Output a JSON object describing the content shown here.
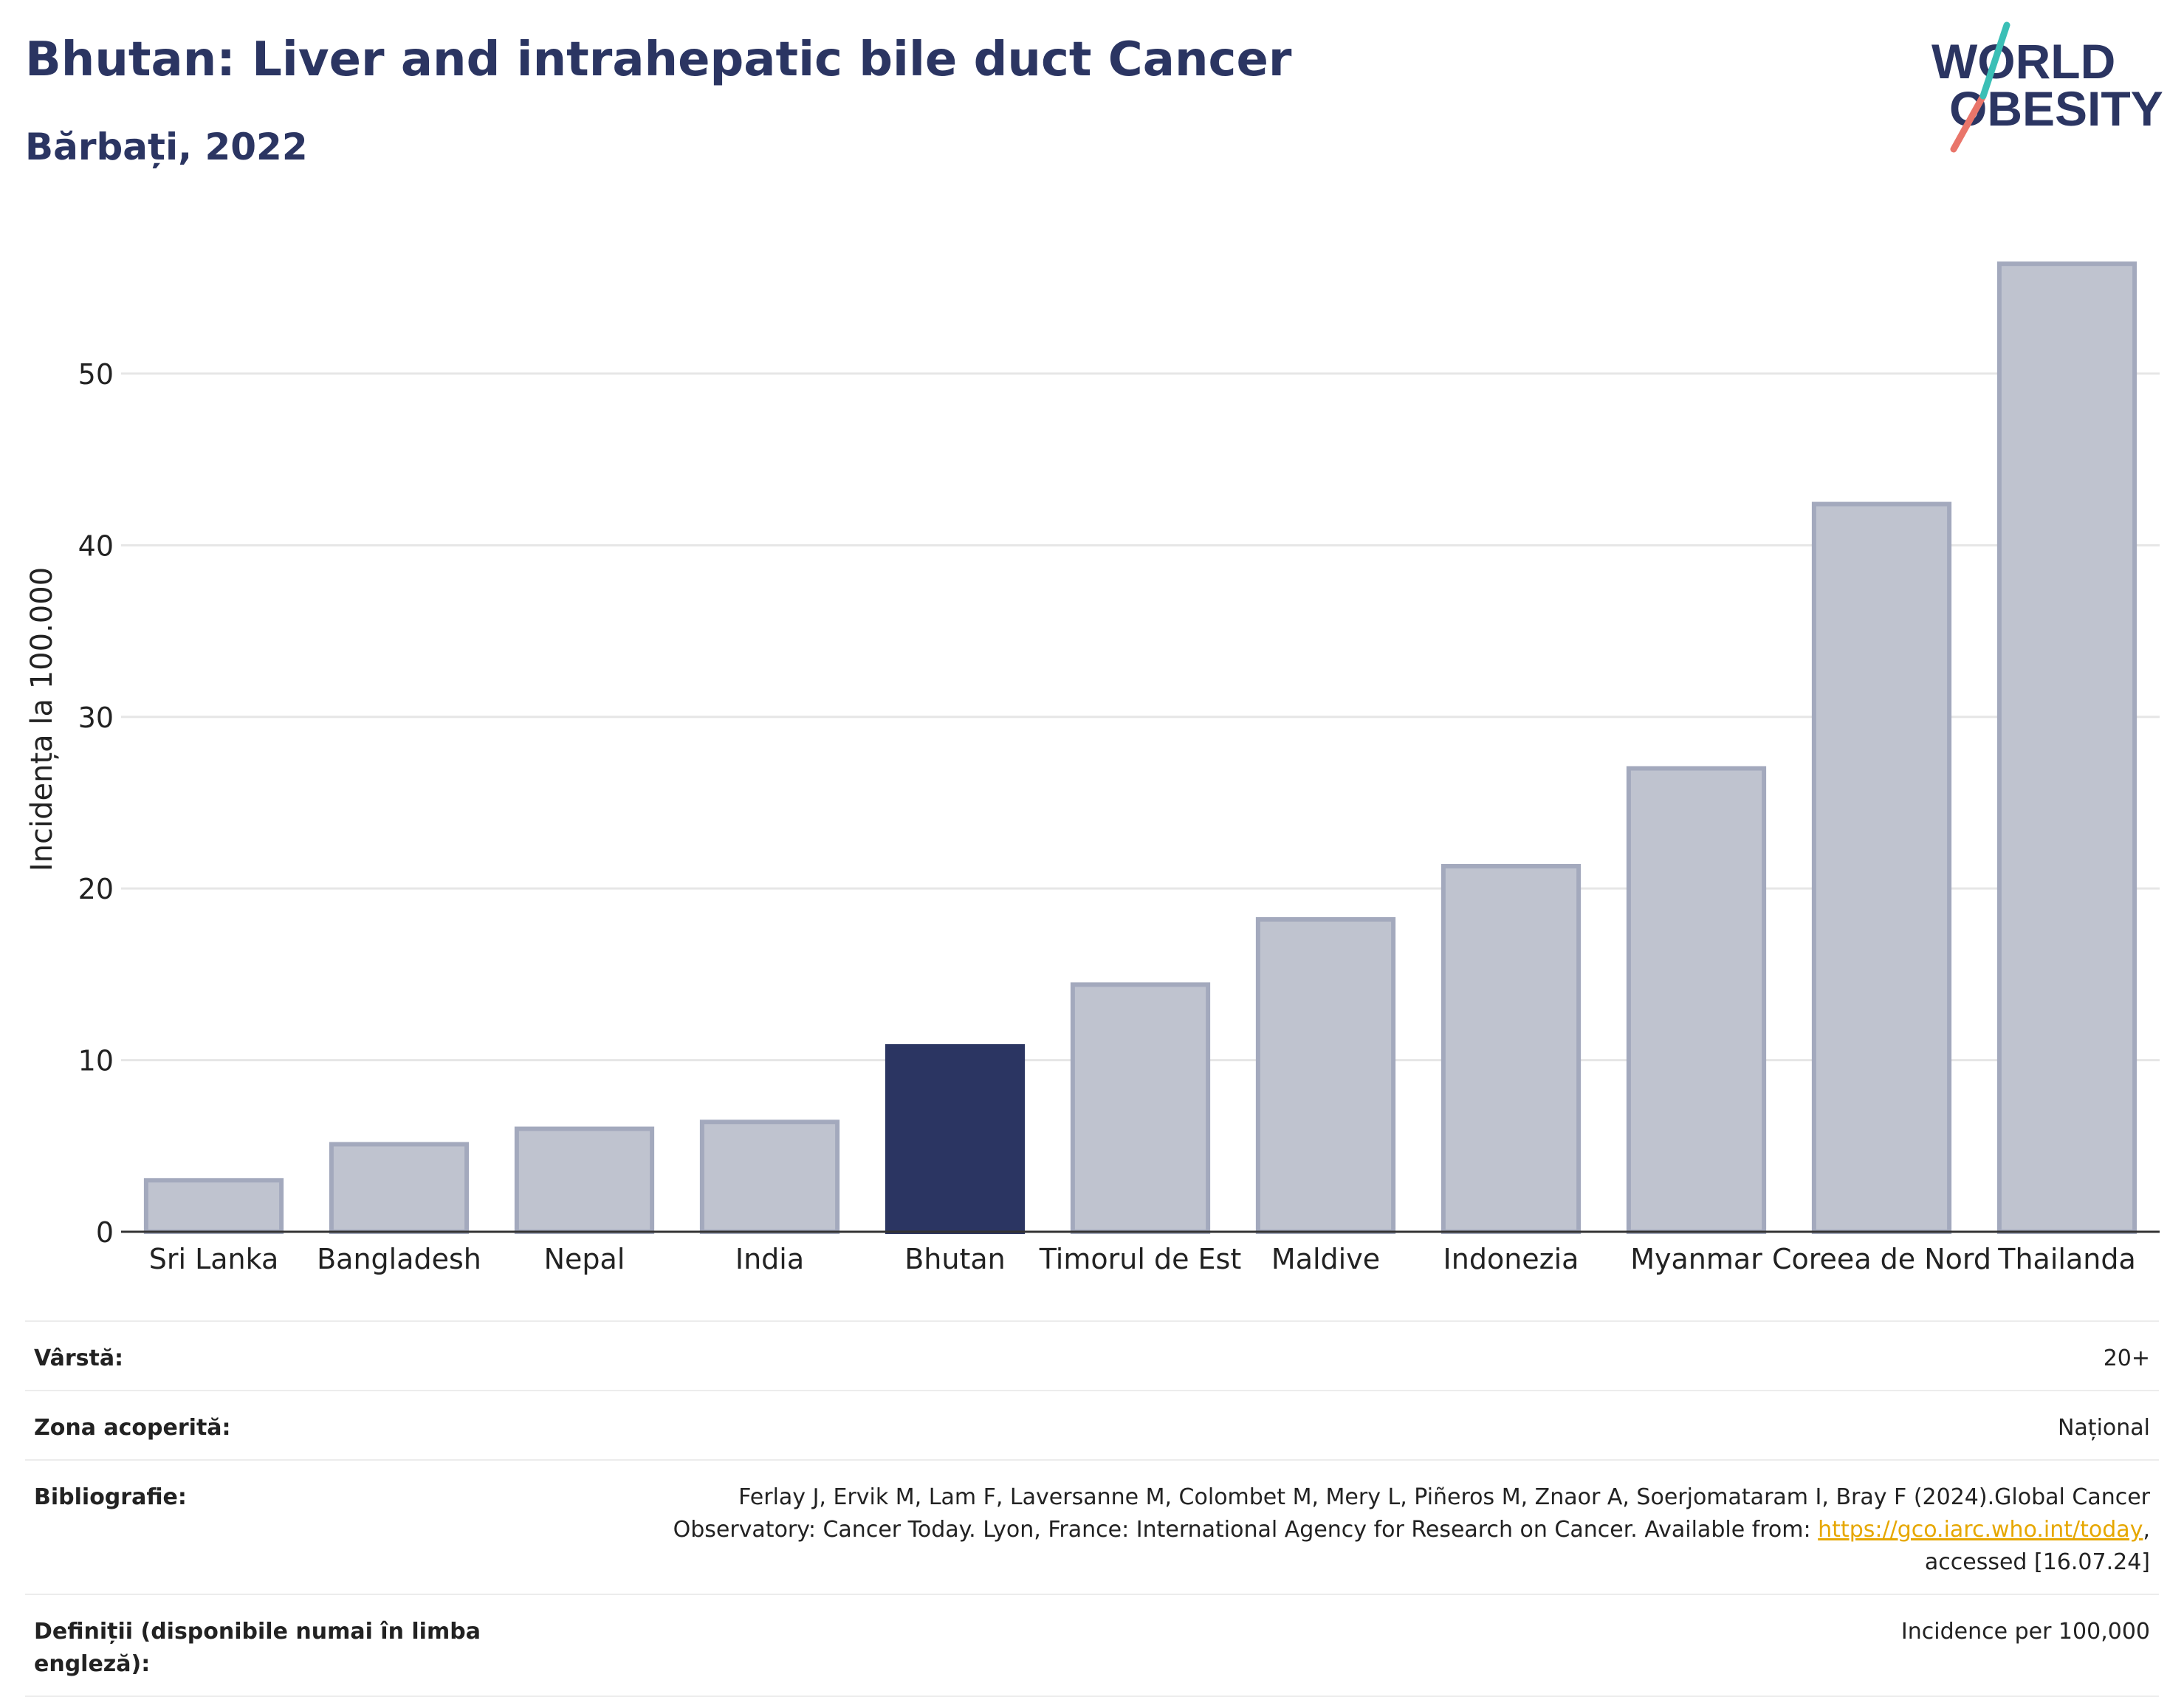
{
  "title": "Bhutan: Liver and intrahepatic bile duct Cancer",
  "subtitle": "Bărbați, 2022",
  "logo": {
    "line1": "WORLD",
    "line2": "OBESITY"
  },
  "colors": {
    "highlight": "#2b3562",
    "bar": "#bfc3cf",
    "bar_edge": "#a3a9bd",
    "link": "#e6a700"
  },
  "chart_data": {
    "type": "bar",
    "categories": [
      "Sri Lanka",
      "Bangladesh",
      "Nepal",
      "India",
      "Bhutan",
      "Timorul de Est",
      "Maldive",
      "Indonezia",
      "Myanmar",
      "Coreea de Nord",
      "Thailanda"
    ],
    "values": [
      3.0,
      5.1,
      6.0,
      6.4,
      10.8,
      14.4,
      18.2,
      21.3,
      27.0,
      42.4,
      56.4
    ],
    "highlight": "Bhutan",
    "ylabel": "Incidența la 100.000",
    "xlabel": "",
    "ylim": [
      0,
      58
    ],
    "yticks": [
      0,
      10,
      20,
      30,
      40,
      50
    ],
    "grid": true
  },
  "meta": [
    {
      "label": "Vârstă:",
      "value": "20+"
    },
    {
      "label": "Zona acoperită:",
      "value": "Național"
    },
    {
      "label": "Bibliografie:",
      "value_pre": "Ferlay J, Ervik M, Lam F, Laversanne M, Colombet M, Mery L, Piñeros M, Znaor A, Soerjomataram I, Bray F (2024).Global Cancer Observatory: Cancer Today. Lyon, France: International Agency for Research on Cancer. Available from: ",
      "link": "https://gco.iarc.who.int/today",
      "value_post": ", accessed [16.07.24]"
    },
    {
      "label": "Definiții (disponibile numai în limba engleză):",
      "value": "Incidence per 100,000"
    }
  ]
}
